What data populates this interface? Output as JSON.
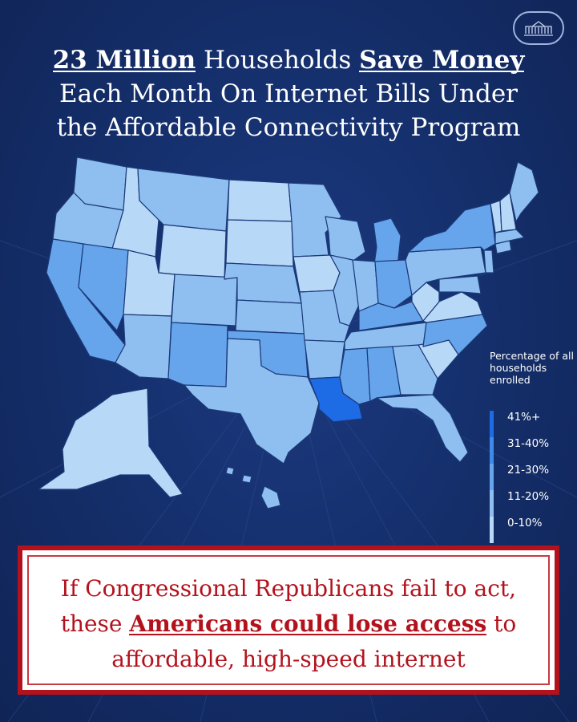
{
  "title": {
    "part1": "23 Million",
    "part2": " Households ",
    "part3": "Save Money",
    "line2": "Each Month On Internet Bills Under",
    "line3": "the Affordable Connectivity Program"
  },
  "seal_icon": "white-house-icon",
  "legend": {
    "title": "Percentage of all households enrolled",
    "items": [
      {
        "label": "41%+",
        "color": "#1e6be6"
      },
      {
        "label": "31-40%",
        "color": "#3f8ae8"
      },
      {
        "label": "21-30%",
        "color": "#66a5ec"
      },
      {
        "label": "11-20%",
        "color": "#8fbff1"
      },
      {
        "label": "0-10%",
        "color": "#b8d8f7"
      }
    ]
  },
  "map_data": {
    "colors": {
      "t41": "#1e6be6",
      "t31": "#3f8ae8",
      "t21": "#66a5ec",
      "t11": "#8fbff1",
      "t0": "#b8d8f7",
      "background": "#15306d",
      "callout_red": "#b3121c"
    }
  },
  "callout": {
    "pre": "If Congressional Republicans fail to act, these ",
    "emph": "Americans could lose access",
    "post": " to affordable, high-speed internet"
  }
}
